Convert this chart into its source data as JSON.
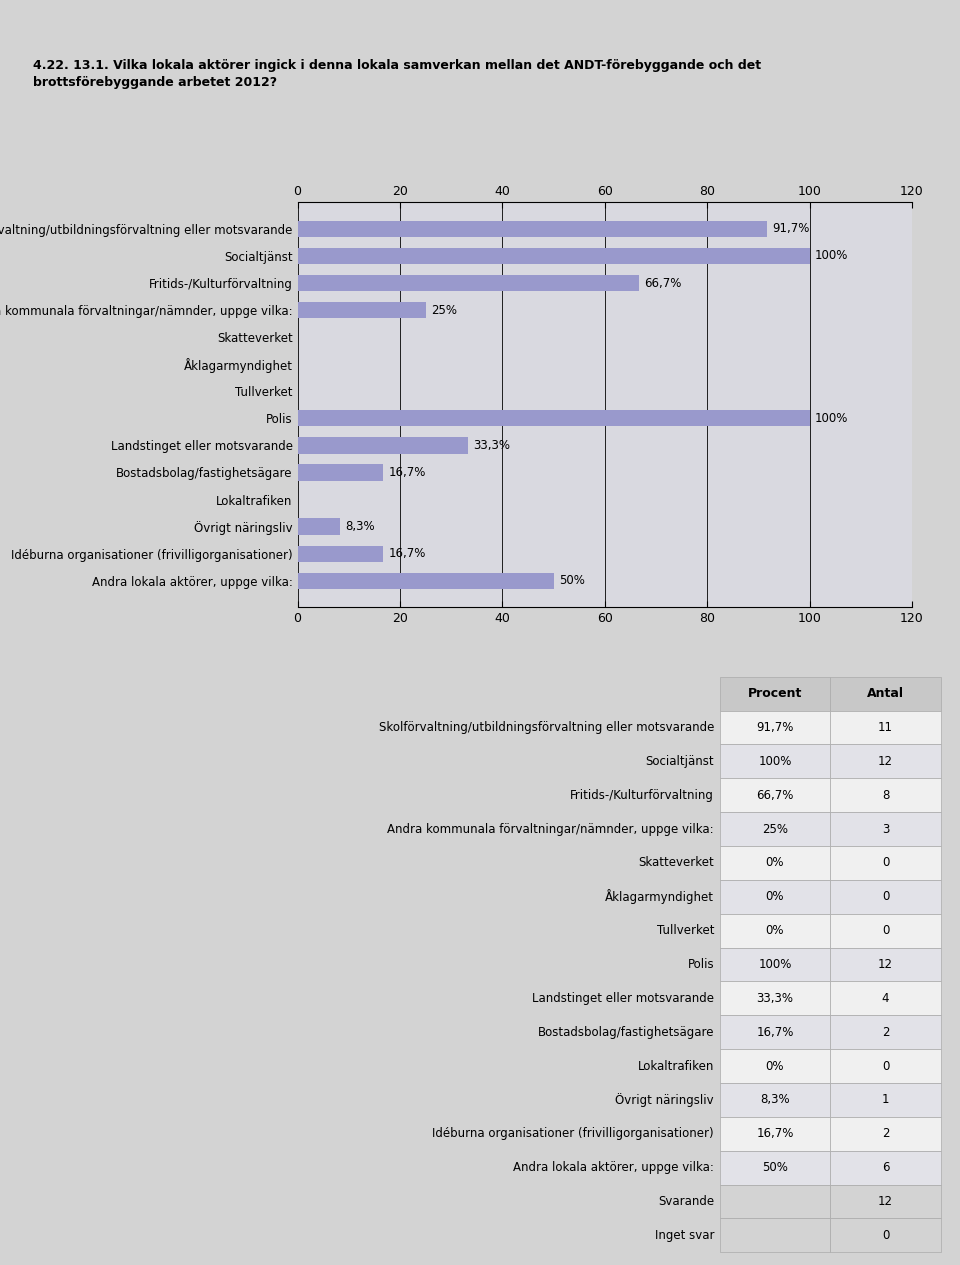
{
  "title_line1": "4.22. 13.1. Vilka lokala aktörer ingick i denna lokala samverkan mellan det ANDT-förebyggande och det",
  "title_line2": "brottsförebyggande arbetet 2012?",
  "categories": [
    "Skolförvaltning/utbildningsförvaltning eller motsvarande",
    "Socialtjänst",
    "Fritids-/Kulturförvaltning",
    "Andra kommunala förvaltningar/nämnder, uppge vilka:",
    "Skatteverket",
    "Åklagarmyndighet",
    "Tullverket",
    "Polis",
    "Landstinget eller motsvarande",
    "Bostadsbolag/fastighetsägare",
    "Lokaltrafiken",
    "Övrigt näringsliv",
    "Idéburna organisationer (frivilligorganisationer)",
    "Andra lokala aktörer, uppge vilka:"
  ],
  "values": [
    91.7,
    100.0,
    66.7,
    25.0,
    0.0,
    0.0,
    0.0,
    100.0,
    33.3,
    16.7,
    0.0,
    8.3,
    16.7,
    50.0
  ],
  "percents": [
    "91,7%",
    "100%",
    "66,7%",
    "25%",
    "",
    "",
    "",
    "100%",
    "33,3%",
    "16,7%",
    "",
    "8,3%",
    "16,7%",
    "50%"
  ],
  "antal": [
    11,
    12,
    8,
    3,
    0,
    0,
    0,
    12,
    4,
    2,
    0,
    1,
    2,
    6
  ],
  "procent_str": [
    "91,7%",
    "100%",
    "66,7%",
    "25%",
    "0%",
    "0%",
    "0%",
    "100%",
    "33,3%",
    "16,7%",
    "0%",
    "8,3%",
    "16,7%",
    "50%"
  ],
  "bar_color": "#9999cc",
  "outer_bg": "#d3d3d3",
  "chart_bg": "#d9d9e0",
  "xlim": [
    0,
    120
  ],
  "xticks": [
    0,
    20,
    40,
    60,
    80,
    100,
    120
  ],
  "svarande": 12,
  "inget_svar": 0,
  "table_header_bg": "#c8c8c8",
  "table_row_light": "#f0f0f0",
  "table_row_dark": "#e2e2e8",
  "table_summary_bg": "#e8e8e8"
}
